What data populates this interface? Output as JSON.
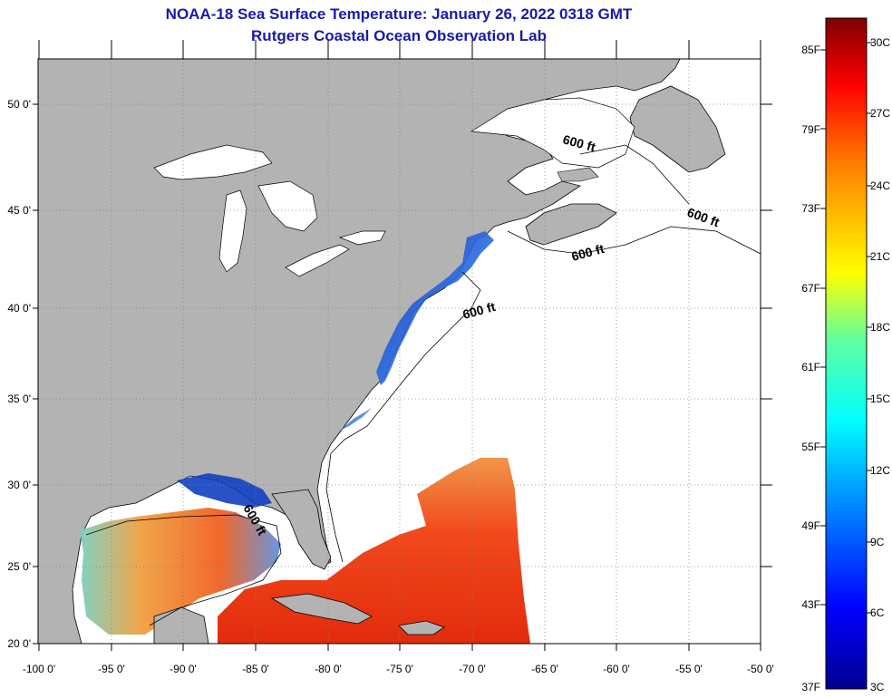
{
  "header": {
    "title": "NOAA-18 Sea Surface Temperature:  January 26, 2022 0318 GMT",
    "subtitle": "Rutgers Coastal Ocean Observation Lab"
  },
  "map": {
    "lon_ticks": [
      "-100 0'",
      "-95 0'",
      "-90 0'",
      "-85 0'",
      "-80 0'",
      "-75 0'",
      "-70 0'",
      "-65 0'",
      "-60 0'",
      "-55 0'",
      "-50 0'"
    ],
    "lat_ticks": [
      "50 0'",
      "45 0'",
      "40 0'",
      "35 0'",
      "30 0'",
      "25 0'",
      "20 0'"
    ],
    "isobath_labels": [
      "600 ft",
      "600 ft",
      "600 ft",
      "600 ft",
      "600 ft"
    ],
    "colors": {
      "land": "#b3b3b3",
      "cloud_or_nodata": "#ffffff",
      "grid": "#808080"
    }
  },
  "colorbar": {
    "fahrenheit": [
      "85F",
      "79F",
      "73F",
      "67F",
      "61F",
      "55F",
      "49F",
      "43F",
      "37F"
    ],
    "celsius": [
      "30C",
      "27C",
      "24C",
      "21C",
      "18C",
      "15C",
      "12C",
      "9C",
      "6C",
      "3C"
    ]
  }
}
